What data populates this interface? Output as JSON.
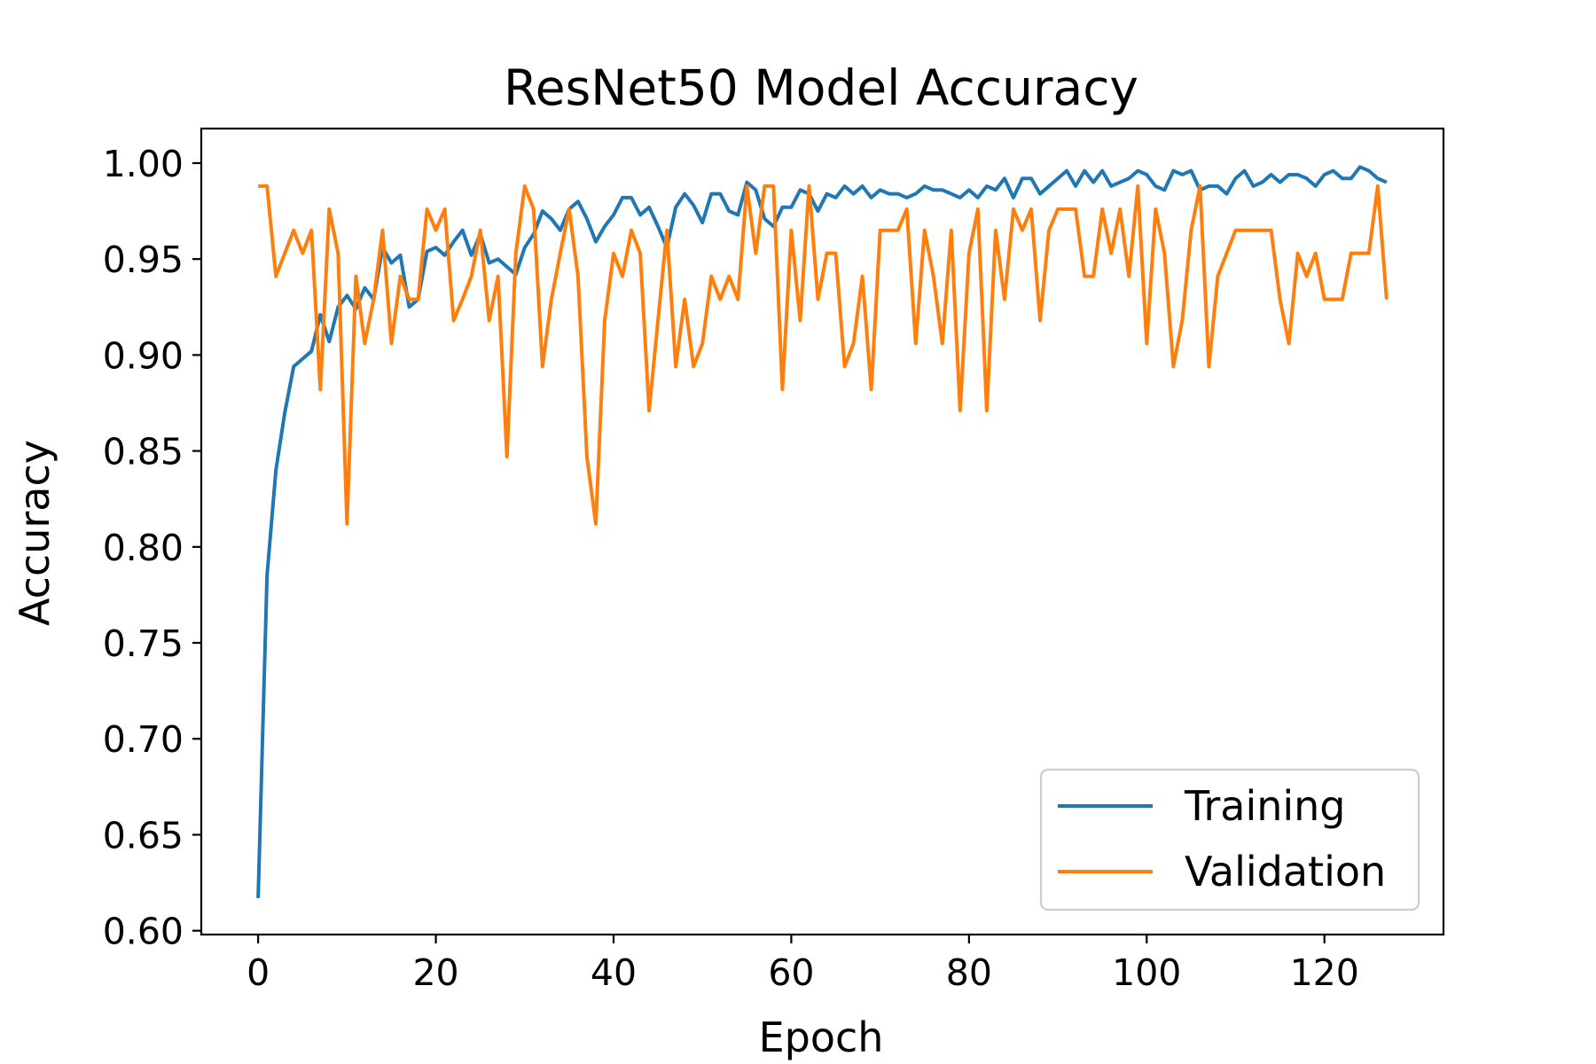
{
  "chart_data": {
    "type": "line",
    "title": "ResNet50 Model Accuracy",
    "xlabel": "Epoch",
    "ylabel": "Accuracy",
    "xlim": [
      -6.4,
      133.4
    ],
    "ylim": [
      0.598,
      1.018
    ],
    "xticks": [
      0,
      20,
      40,
      60,
      80,
      100,
      120
    ],
    "yticks": [
      0.6,
      0.65,
      0.7,
      0.75,
      0.8,
      0.85,
      0.9,
      0.95,
      1.0
    ],
    "ytick_labels": [
      "0.60",
      "0.65",
      "0.70",
      "0.75",
      "0.80",
      "0.85",
      "0.90",
      "0.95",
      "1.00"
    ],
    "legend_position": "lower-right",
    "grid": false,
    "series": [
      {
        "name": "Training",
        "color": "#1f77b4",
        "values": [
          0.617,
          0.785,
          0.84,
          0.87,
          0.894,
          0.898,
          0.902,
          0.921,
          0.907,
          0.925,
          0.931,
          0.924,
          0.935,
          0.929,
          0.956,
          0.948,
          0.952,
          0.925,
          0.929,
          0.954,
          0.956,
          0.952,
          0.959,
          0.965,
          0.952,
          0.963,
          0.948,
          0.95,
          0.946,
          0.942,
          0.956,
          0.963,
          0.975,
          0.971,
          0.965,
          0.976,
          0.98,
          0.971,
          0.959,
          0.967,
          0.973,
          0.982,
          0.982,
          0.973,
          0.977,
          0.967,
          0.956,
          0.977,
          0.984,
          0.978,
          0.969,
          0.984,
          0.984,
          0.975,
          0.973,
          0.99,
          0.986,
          0.971,
          0.967,
          0.977,
          0.977,
          0.986,
          0.984,
          0.975,
          0.984,
          0.982,
          0.988,
          0.984,
          0.988,
          0.982,
          0.986,
          0.984,
          0.984,
          0.982,
          0.984,
          0.988,
          0.986,
          0.986,
          0.984,
          0.982,
          0.986,
          0.982,
          0.988,
          0.986,
          0.992,
          0.982,
          0.992,
          0.992,
          0.984,
          0.988,
          0.992,
          0.996,
          0.988,
          0.996,
          0.99,
          0.996,
          0.988,
          0.99,
          0.992,
          0.996,
          0.994,
          0.988,
          0.986,
          0.996,
          0.994,
          0.996,
          0.986,
          0.988,
          0.988,
          0.984,
          0.992,
          0.996,
          0.988,
          0.99,
          0.994,
          0.99,
          0.994,
          0.994,
          0.992,
          0.988,
          0.994,
          0.996,
          0.992,
          0.992,
          0.998,
          0.996,
          0.992,
          0.99
        ]
      },
      {
        "name": "Validation",
        "color": "#ff7f0e",
        "values": [
          0.988,
          0.988,
          0.941,
          0.953,
          0.965,
          0.953,
          0.965,
          0.882,
          0.976,
          0.953,
          0.812,
          0.941,
          0.906,
          0.929,
          0.965,
          0.906,
          0.941,
          0.929,
          0.929,
          0.976,
          0.965,
          0.976,
          0.918,
          0.929,
          0.941,
          0.965,
          0.918,
          0.941,
          0.847,
          0.953,
          0.988,
          0.976,
          0.894,
          0.929,
          0.953,
          0.976,
          0.941,
          0.847,
          0.812,
          0.918,
          0.953,
          0.941,
          0.965,
          0.953,
          0.871,
          0.918,
          0.965,
          0.894,
          0.929,
          0.894,
          0.906,
          0.941,
          0.929,
          0.941,
          0.929,
          0.988,
          0.953,
          0.988,
          0.988,
          0.882,
          0.965,
          0.918,
          0.988,
          0.929,
          0.953,
          0.953,
          0.894,
          0.906,
          0.941,
          0.882,
          0.965,
          0.965,
          0.965,
          0.976,
          0.906,
          0.965,
          0.941,
          0.906,
          0.965,
          0.871,
          0.953,
          0.976,
          0.871,
          0.965,
          0.929,
          0.976,
          0.965,
          0.976,
          0.918,
          0.965,
          0.976,
          0.976,
          0.976,
          0.941,
          0.941,
          0.976,
          0.953,
          0.976,
          0.941,
          0.988,
          0.906,
          0.976,
          0.953,
          0.894,
          0.918,
          0.965,
          0.988,
          0.894,
          0.941,
          0.953,
          0.965,
          0.965,
          0.965,
          0.965,
          0.965,
          0.929,
          0.906,
          0.953,
          0.941,
          0.953,
          0.929,
          0.929,
          0.929,
          0.953,
          0.953,
          0.953,
          0.988,
          0.929
        ]
      }
    ]
  }
}
